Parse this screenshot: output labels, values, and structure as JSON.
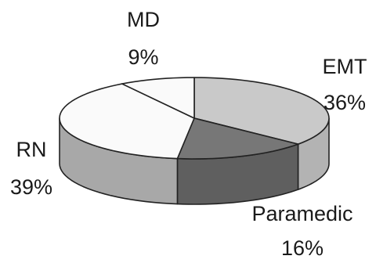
{
  "chart_data": {
    "type": "pie",
    "style": "3d-exploded",
    "slices": [
      {
        "label": "EMT",
        "percent_label": "36%",
        "value": 36,
        "color": "#c9c9c9",
        "side_color": "#b3b3b3"
      },
      {
        "label": "Paramedic",
        "percent_label": "16%",
        "value": 16,
        "color": "#777777",
        "side_color": "#5f5f5f"
      },
      {
        "label": "RN",
        "percent_label": "39%",
        "value": 39,
        "color": "#fafafa",
        "side_color": "#a8a8a8"
      },
      {
        "label": "MD",
        "percent_label": "9%",
        "value": 9,
        "color": "#fafafa",
        "side_color": "#f2f2f2"
      }
    ]
  }
}
